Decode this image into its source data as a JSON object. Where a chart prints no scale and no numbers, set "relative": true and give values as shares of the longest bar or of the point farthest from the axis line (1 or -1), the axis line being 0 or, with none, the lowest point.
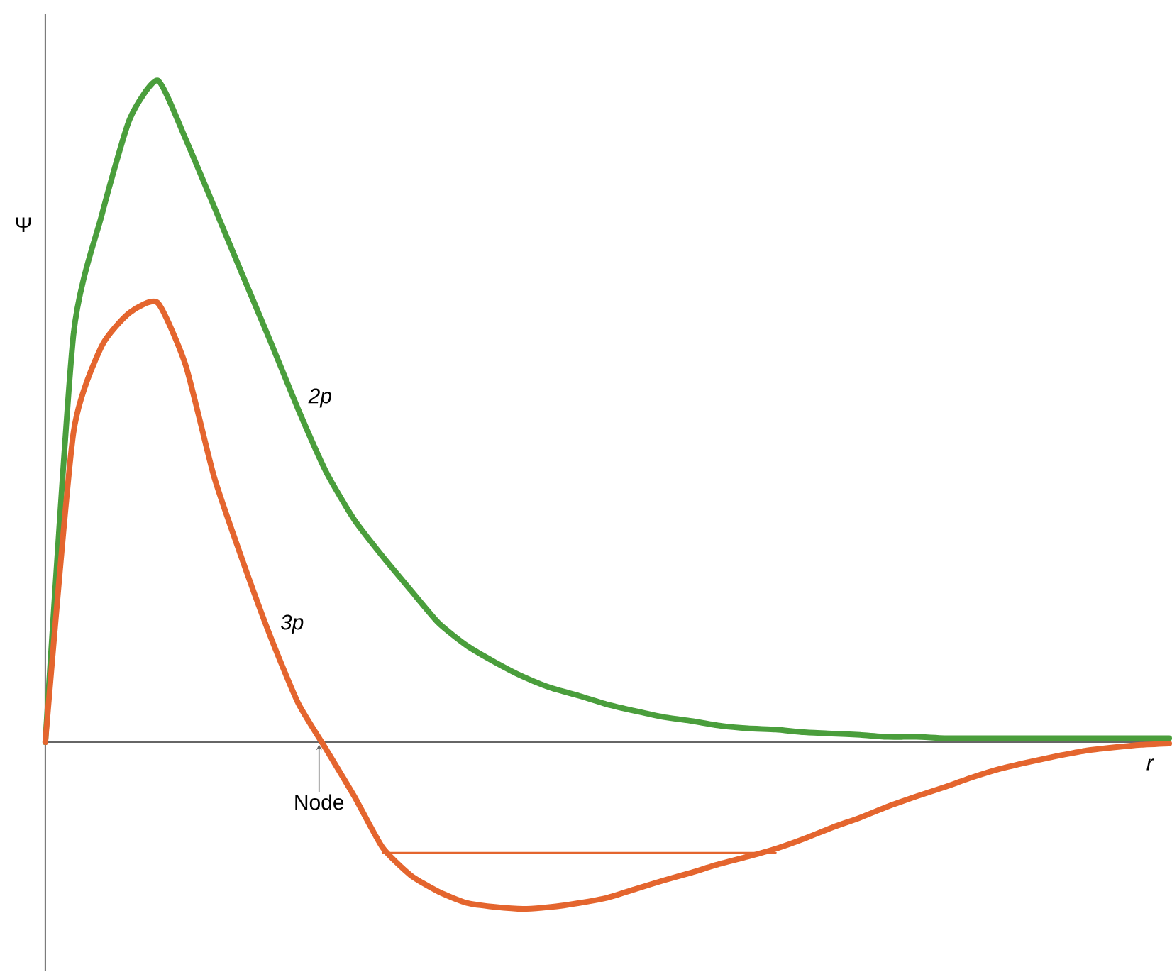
{
  "chart_data": {
    "type": "line",
    "relative": true,
    "xlabel": "r",
    "ylabel": "Ψ",
    "annotations": [
      "Node"
    ],
    "categories": [
      null,
      null,
      null,
      null,
      null,
      null,
      null,
      null,
      null,
      null,
      null,
      null,
      null,
      null,
      null,
      null,
      null,
      null,
      null,
      null,
      null,
      null,
      null,
      null,
      null,
      null,
      null,
      null,
      null,
      null,
      null,
      null,
      null,
      null,
      null,
      null,
      null,
      null,
      null,
      null,
      null
    ],
    "series": [
      {
        "name": "2p",
        "color": "#4a9e3c",
        "values": [
          0,
          0.615,
          0.795,
          0.941,
          1,
          0.911,
          0.81,
          0.708,
          0.607,
          0.503,
          0.408,
          0.336,
          0.281,
          0.23,
          0.18,
          0.146,
          0.121,
          0.099,
          0.082,
          0.07,
          0.057,
          0.047,
          0.038,
          0.032,
          0.025,
          0.021,
          0.019,
          0.015,
          0.013,
          0.011,
          0.008,
          0.008,
          0.006,
          0.006,
          0.006,
          0.006,
          0.006,
          0.006,
          0.006,
          0.006,
          0.006
        ]
      },
      {
        "name": "3p",
        "color": "#e4652e",
        "values": [
          0,
          0.467,
          0.598,
          0.649,
          0.664,
          0.569,
          0.402,
          0.277,
          0.161,
          0.059,
          -0.011,
          -0.082,
          -0.159,
          -0.201,
          -0.226,
          -0.243,
          -0.249,
          -0.252,
          -0.249,
          -0.243,
          -0.235,
          -0.222,
          -0.209,
          -0.197,
          -0.184,
          -0.173,
          -0.161,
          -0.146,
          -0.129,
          -0.114,
          -0.097,
          -0.082,
          -0.068,
          -0.053,
          -0.04,
          -0.03,
          -0.021,
          -0.013,
          -0.008,
          -0.004,
          -0.002
        ]
      },
      {
        "color": "#e4652e",
        "values": [
          null,
          null,
          null,
          null,
          null,
          null,
          null,
          null,
          null,
          null,
          null,
          null,
          -0.167,
          -0.167,
          -0.167,
          -0.167,
          -0.167,
          -0.167,
          -0.167,
          -0.167,
          -0.167,
          -0.167,
          -0.167,
          -0.167,
          -0.167,
          -0.167,
          -0.167,
          null,
          null,
          null,
          null,
          null,
          null,
          null,
          null,
          null,
          null,
          null,
          null,
          null,
          null
        ]
      }
    ]
  }
}
